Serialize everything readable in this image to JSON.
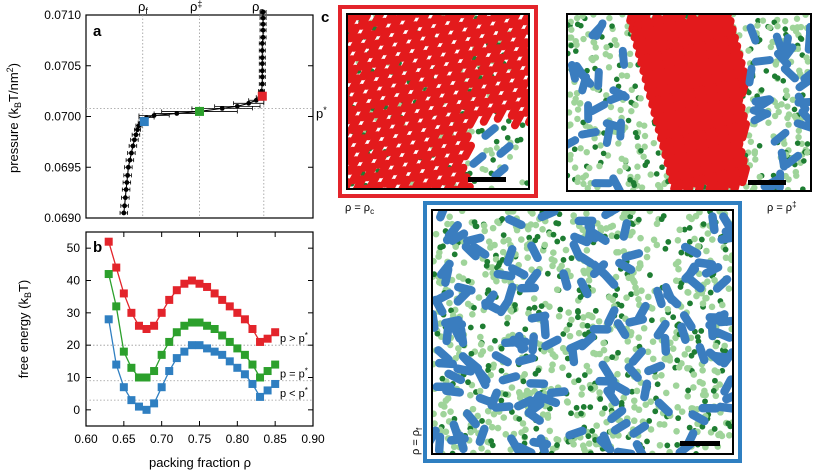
{
  "colors": {
    "red": "#e3242b",
    "green": "#2ca02c",
    "blue": "#2f7fc1",
    "black": "#000000",
    "dot_dark": "#1e7d32",
    "dot_light": "#9fd49a",
    "rod_red": "#e31a1c",
    "rod_blue": "#3a7dbf"
  },
  "labels": {
    "panel_a": "a",
    "panel_b": "b",
    "panel_c": "c",
    "rho_f": "ρ",
    "rho_f_sub": "f",
    "rho_dd": "ρ",
    "rho_dd_sup": "‡",
    "rho_c": "ρ",
    "rho_c_sub": "c",
    "p_star": "p",
    "p_star_sup": "*",
    "snap1_caption": "ρ = ρ",
    "snap1_caption_sub": "c",
    "snap2_caption": "ρ = ρ",
    "snap2_caption_sup": "‡",
    "snap3_caption": "ρ = ρ",
    "snap3_caption_sub": "f"
  },
  "chart_data": [
    {
      "panel": "a",
      "type": "line",
      "ylabel": "pressure (k",
      "ylabel_sub": "B",
      "ylabel_tail": "T/nm",
      "ylabel_sup": "2",
      "ylabel_end": ")",
      "ylim": [
        0.069,
        0.071
      ],
      "yticks": [
        "0.0690",
        "0.0695",
        "0.0700",
        "0.0705",
        "0.0710"
      ],
      "ytick_values": [
        0.069,
        0.0695,
        0.07,
        0.0705,
        0.071
      ],
      "xlim": [
        0.6,
        0.9
      ],
      "grid": false,
      "reference_lines": {
        "x": [
          0.675,
          0.75,
          0.835
        ],
        "y": [
          0.07008
        ]
      },
      "series": [
        {
          "x": [
            0.65,
            0.651,
            0.652,
            0.653,
            0.654,
            0.655,
            0.656,
            0.658,
            0.66,
            0.662,
            0.664,
            0.666,
            0.668,
            0.67,
            0.673,
            0.676,
            0.68,
            0.69,
            0.72,
            0.75,
            0.78,
            0.8,
            0.815,
            0.825,
            0.83,
            0.832,
            0.833,
            0.833,
            0.833,
            0.833,
            0.833,
            0.833,
            0.833,
            0.834,
            0.834,
            0.834,
            0.834,
            0.834
          ],
          "y": [
            0.06905,
            0.06912,
            0.0692,
            0.06928,
            0.06935,
            0.06942,
            0.0695,
            0.06957,
            0.06964,
            0.06971,
            0.06977,
            0.06982,
            0.06987,
            0.06991,
            0.06994,
            0.06997,
            0.06999,
            0.07001,
            0.07003,
            0.07005,
            0.07008,
            0.0701,
            0.07013,
            0.07016,
            0.07019,
            0.07025,
            0.07032,
            0.07039,
            0.07045,
            0.07052,
            0.07058,
            0.07065,
            0.07072,
            0.07078,
            0.07085,
            0.07091,
            0.07097,
            0.07103
          ],
          "xerr": [
            0.005,
            0.005,
            0.005,
            0.005,
            0.005,
            0.005,
            0.005,
            0.005,
            0.005,
            0.005,
            0.005,
            0.005,
            0.004,
            0.004,
            0.004,
            0.004,
            0.01,
            0.02,
            0.03,
            0.05,
            0.04,
            0.03,
            0.02,
            0.01,
            0.005,
            0.004,
            0.004,
            0.004,
            0.004,
            0.004,
            0.004,
            0.004,
            0.004,
            0.004,
            0.004,
            0.004,
            0.004,
            0.004
          ]
        }
      ],
      "markers": [
        {
          "name": "rho_f",
          "x": 0.677,
          "y": 0.06995,
          "color": "#2f7fc1"
        },
        {
          "name": "rho_dd",
          "x": 0.75,
          "y": 0.07005,
          "color": "#2ca02c"
        },
        {
          "name": "rho_c",
          "x": 0.833,
          "y": 0.0702,
          "color": "#e3242b"
        }
      ]
    },
    {
      "panel": "b",
      "type": "line",
      "xlabel": "packing fraction ρ",
      "ylabel": "free energy (k",
      "ylabel_sub": "B",
      "ylabel_end": "T)",
      "xlim": [
        0.6,
        0.9
      ],
      "ylim": [
        -5,
        55
      ],
      "xticks": [
        "0.60",
        "0.65",
        "0.70",
        "0.75",
        "0.80",
        "0.85",
        "0.90"
      ],
      "xtick_values": [
        0.6,
        0.65,
        0.7,
        0.75,
        0.8,
        0.85,
        0.9
      ],
      "yticks": [
        "0",
        "10",
        "20",
        "30",
        "40",
        "50"
      ],
      "ytick_values": [
        0,
        10,
        20,
        30,
        40,
        50
      ],
      "grid": false,
      "x": [
        0.63,
        0.64,
        0.65,
        0.66,
        0.67,
        0.68,
        0.69,
        0.7,
        0.71,
        0.72,
        0.73,
        0.74,
        0.75,
        0.76,
        0.77,
        0.78,
        0.79,
        0.8,
        0.81,
        0.82,
        0.83,
        0.84,
        0.85
      ],
      "series": [
        {
          "name": "p > p*",
          "color": "#e3242b",
          "values": [
            52,
            44,
            36,
            30,
            26,
            25,
            26,
            30,
            34,
            37,
            39,
            40,
            39,
            38,
            36,
            34,
            32,
            30,
            28,
            25,
            21,
            22,
            24
          ]
        },
        {
          "name": "p = p*",
          "color": "#2ca02c",
          "values": [
            42,
            32,
            18,
            13,
            10,
            10,
            12,
            17,
            21,
            24,
            26,
            27,
            27,
            26,
            25,
            23,
            21,
            19,
            17,
            14,
            10,
            12,
            14
          ]
        },
        {
          "name": "p < p*",
          "color": "#2f7fc1",
          "values": [
            28,
            14,
            7,
            3,
            1,
            0,
            2,
            7,
            12,
            16,
            18,
            20,
            20,
            19,
            18,
            17,
            15,
            13,
            11,
            8,
            4,
            6,
            8
          ]
        }
      ]
    }
  ]
}
